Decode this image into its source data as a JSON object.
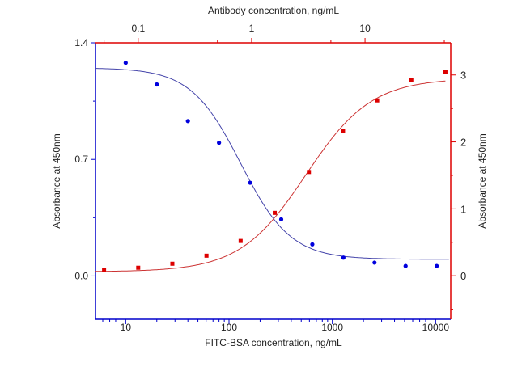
{
  "chart_data": {
    "type": "scatter",
    "xlabel": "FITC-BSA  concentration, ng/mL",
    "x2label": "Antibody concentration, ng/mL",
    "ylabel": "Absorbance at 450nm",
    "y2label": "Absorbance at 450nm",
    "x_scale": "log",
    "x2_scale": "log",
    "xlim": [
      5.1,
      14000
    ],
    "x2lim": [
      0.042,
      57
    ],
    "ylim": [
      -0.26,
      1.4
    ],
    "y2lim": [
      -0.65,
      3.48
    ],
    "xticks": [
      10,
      100,
      1000,
      10000
    ],
    "xtick_labels": [
      "10",
      "100",
      "1000",
      "10000"
    ],
    "x2ticks": [
      0.1,
      1,
      10
    ],
    "x2tick_labels": [
      "0.1",
      "1",
      "10"
    ],
    "yticks": [
      0.0,
      0.7,
      1.4
    ],
    "ytick_labels": [
      "0.0",
      "0.7",
      "1.4"
    ],
    "y2ticks": [
      0,
      1,
      2,
      3
    ],
    "y2tick_labels": [
      "0",
      "1",
      "2",
      "3"
    ],
    "grid": false,
    "series": [
      {
        "axes": "bottom-left",
        "color": "#0000dd",
        "marker": "circle",
        "x": [
          10,
          20,
          40,
          80,
          160,
          320,
          640,
          1280,
          2560,
          5120,
          10240
        ],
        "y": [
          1.28,
          1.15,
          0.93,
          0.8,
          0.56,
          0.34,
          0.19,
          0.11,
          0.08,
          0.06,
          0.06
        ],
        "fit": {
          "model": "4PL",
          "top": 1.25,
          "bottom": 0.1,
          "ec50": 130,
          "hill": 1.8
        }
      },
      {
        "axes": "top-right",
        "color": "#dd0000",
        "marker": "square",
        "x": [
          0.05,
          0.1,
          0.2,
          0.4,
          0.8,
          1.6,
          3.2,
          6.4,
          12.8,
          25.6,
          51.2
        ],
        "y": [
          0.09,
          0.12,
          0.18,
          0.3,
          0.52,
          0.94,
          1.55,
          2.16,
          2.62,
          2.93,
          3.05
        ],
        "fit": {
          "model": "4PL",
          "top": 2.95,
          "bottom": 0.06,
          "ec50": 3.0,
          "hill": 1.5
        }
      }
    ]
  }
}
